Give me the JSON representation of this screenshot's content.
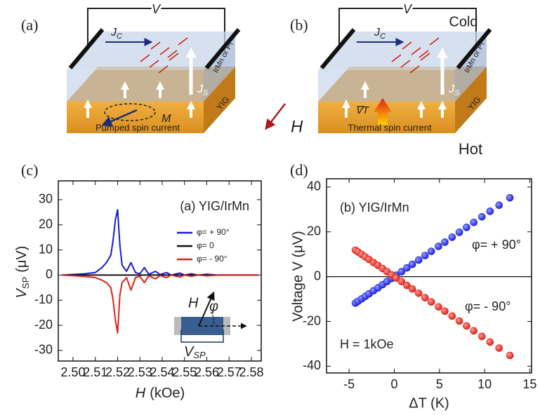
{
  "panel_a": {
    "label": "(a)",
    "voltage": "V",
    "charge_current": {
      "main": "J",
      "sub": "C"
    },
    "spin_current": {
      "main": "J",
      "sub": "S"
    },
    "top_layer": "IrMn or Pt",
    "bottom_layer": "YIG",
    "magnetization": "M",
    "caption": "Pumped spin current"
  },
  "field": {
    "label": "H"
  },
  "panel_b": {
    "label": "(b)",
    "voltage": "V",
    "cold": "Cold",
    "charge_current": {
      "main": "J",
      "sub": "C"
    },
    "spin_current": {
      "main": "J",
      "sub": "S"
    },
    "top_layer": "IrMn or Pt",
    "bottom_layer": "YIG",
    "gradient": "∇T",
    "caption": "Thermal spin current",
    "hot": "Hot"
  },
  "chart_data": [
    {
      "type": "line",
      "panel_label": "(c)",
      "annotation": "(a) YIG/IrMn",
      "y_label": {
        "main": "V",
        "sub": "SP",
        "unit": "(μV)"
      },
      "x_label": {
        "main": "H",
        "unit": "(kOe)"
      },
      "x": [
        2.495,
        2.505,
        2.51,
        2.513,
        2.515,
        2.517,
        2.518,
        2.519,
        2.52,
        2.521,
        2.522,
        2.524,
        2.526,
        2.528,
        2.53,
        2.532,
        2.534,
        2.537,
        2.539,
        2.542,
        2.544,
        2.548,
        2.55,
        2.553,
        2.556,
        2.56,
        2.565,
        2.57,
        2.575,
        2.583
      ],
      "series": [
        {
          "name": "φ= + 90°",
          "color": "#1a1adb",
          "values": [
            0,
            0.5,
            1,
            3,
            5,
            8,
            14,
            22,
            26,
            12,
            4,
            1.5,
            5,
            1,
            0.5,
            3,
            0.3,
            1.5,
            0.2,
            1,
            0,
            0.8,
            0,
            0.5,
            0,
            0.3,
            0,
            0,
            0,
            0
          ]
        },
        {
          "name": "φ= 0",
          "color": "#111111",
          "values": [
            0,
            0,
            0,
            0,
            0,
            0,
            0,
            0,
            0,
            0,
            0,
            0,
            0,
            0,
            0,
            0,
            0,
            0,
            0,
            0,
            0,
            0,
            0,
            0,
            0,
            0,
            0,
            0,
            0,
            0
          ]
        },
        {
          "name": "φ= - 90°",
          "color": "#e0201a",
          "values": [
            0,
            -0.5,
            -1,
            -2,
            -3,
            -5,
            -10,
            -18,
            -23,
            -8,
            -3,
            -1,
            -6,
            -1,
            -0.5,
            -3,
            -0.3,
            -1.5,
            -0.2,
            -1,
            0,
            -0.8,
            0,
            -0.5,
            0,
            -0.3,
            0,
            0,
            0,
            0
          ]
        }
      ],
      "xlim": [
        2.4934,
        2.5844
      ],
      "xticks": [
        {
          "value": 2.5,
          "label": "2.50"
        },
        {
          "value": 2.51,
          "label": "2.51"
        },
        {
          "value": 2.52,
          "label": "2.52"
        },
        {
          "value": 2.53,
          "label": "2.53"
        },
        {
          "value": 2.54,
          "label": "2.54"
        },
        {
          "value": 2.55,
          "label": "2.55"
        },
        {
          "value": 2.56,
          "label": "2.56"
        },
        {
          "value": 2.57,
          "label": "2.57"
        },
        {
          "value": 2.58,
          "label": "2.58"
        }
      ],
      "ylim": [
        -34.2,
        37.5
      ],
      "yticks": [
        -30,
        -20,
        -10,
        0,
        10,
        20,
        30
      ],
      "legend": "upper right",
      "inset": {
        "field": "H",
        "angle": "φ",
        "voltage": {
          "main": "V",
          "sub": "SP"
        }
      }
    },
    {
      "type": "scatter",
      "panel_label": "(d)",
      "annotation": "(b) YIG/IrMn",
      "field_note": "H = 1kOe",
      "y_label": "Voltage V (μV)",
      "x_label": "ΔT (K)",
      "x": [
        -4.3,
        -4.0,
        -3.6,
        -3.2,
        -2.8,
        -2.3,
        -1.8,
        -1.3,
        -0.8,
        -0.3,
        0.2,
        0.8,
        1.4,
        2.0,
        2.7,
        3.4,
        4.1,
        4.9,
        5.6,
        6.4,
        7.2,
        8.0,
        8.8,
        9.7,
        10.6,
        11.6,
        12.8
      ],
      "series": [
        {
          "name": "φ= + 90°",
          "color": "#1a1adb",
          "values": [
            -11.8,
            -11.0,
            -9.9,
            -8.8,
            -7.7,
            -6.3,
            -5.0,
            -3.6,
            -2.2,
            -0.8,
            0.6,
            2.2,
            3.9,
            5.5,
            7.4,
            9.4,
            11.3,
            13.5,
            15.4,
            17.6,
            19.8,
            22.0,
            24.2,
            26.7,
            29.2,
            31.9,
            35.2
          ]
        },
        {
          "name": "φ= - 90°",
          "color": "#e0201a",
          "values": [
            11.8,
            11.0,
            9.9,
            8.8,
            7.7,
            6.3,
            5.0,
            3.6,
            2.2,
            0.8,
            -0.6,
            -2.2,
            -3.9,
            -5.5,
            -7.4,
            -9.4,
            -11.3,
            -13.5,
            -15.4,
            -17.6,
            -19.8,
            -22.0,
            -24.2,
            -26.7,
            -29.2,
            -31.9,
            -35.2
          ]
        }
      ],
      "xlim": [
        -7.5,
        15.2
      ],
      "xticks": [
        -5,
        0,
        5,
        10,
        15
      ],
      "ylim": [
        -43,
        43.7
      ],
      "yticks": [
        -40,
        -20,
        0,
        20,
        40
      ],
      "reference_line": 0
    }
  ]
}
